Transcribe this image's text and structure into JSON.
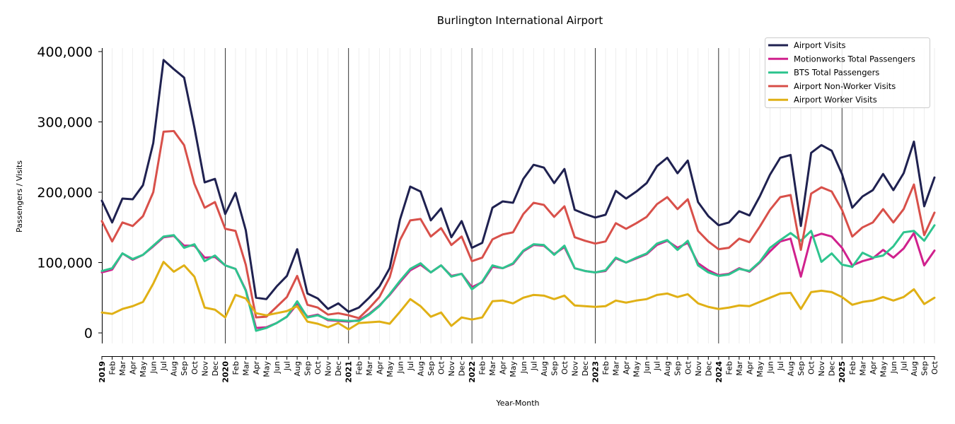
{
  "chart_data": {
    "type": "line",
    "title": "Burlington International Airport",
    "xlabel": "Year-Month",
    "ylabel": "Passengers / Visits",
    "ylim": [
      -15000,
      405000
    ],
    "yticks": [
      0,
      100000,
      200000,
      300000,
      400000
    ],
    "ytick_labels": [
      "0",
      "100,000",
      "200,000",
      "300,000",
      "400,000"
    ],
    "grid": "vertical minor lines per month, major lines at each January",
    "legend_position": "top-right",
    "x": [
      "2019",
      "Feb",
      "Mar",
      "Apr",
      "May",
      "Jun",
      "Jul",
      "Aug",
      "Sep",
      "Oct",
      "Nov",
      "Dec",
      "2020",
      "Feb",
      "Mar",
      "Apr",
      "May",
      "Jun",
      "Jul",
      "Aug",
      "Sep",
      "Oct",
      "Nov",
      "Dec",
      "2021",
      "Feb",
      "Mar",
      "Apr",
      "May",
      "Jun",
      "Jul",
      "Aug",
      "Sep",
      "Oct",
      "Nov",
      "Dec",
      "2022",
      "Feb",
      "Mar",
      "Apr",
      "May",
      "Jun",
      "Jul",
      "Aug",
      "Sep",
      "Oct",
      "Nov",
      "Dec",
      "2023",
      "Feb",
      "Mar",
      "Apr",
      "May",
      "Jun",
      "Jul",
      "Aug",
      "Sep",
      "Oct",
      "Nov",
      "Dec",
      "2024",
      "Feb",
      "Mar",
      "Apr",
      "May",
      "Jun",
      "Jul",
      "Aug",
      "Sep",
      "Oct",
      "Nov",
      "Dec",
      "2025",
      "Feb",
      "Mar",
      "Apr",
      "May",
      "Jun",
      "Jul",
      "Aug",
      "Sep",
      "Oct"
    ],
    "series": [
      {
        "name": "Airport Visits",
        "color": "#1f2150",
        "values": [
          188000,
          157000,
          191000,
          190000,
          210000,
          270000,
          388000,
          375000,
          363000,
          292000,
          214000,
          219000,
          169000,
          199000,
          146000,
          50000,
          48000,
          66000,
          81000,
          119000,
          56000,
          49000,
          34000,
          42000,
          30000,
          36000,
          50000,
          66000,
          92000,
          161000,
          208000,
          201000,
          160000,
          177000,
          136000,
          159000,
          121000,
          128000,
          178000,
          187000,
          185000,
          219000,
          239000,
          235000,
          213000,
          233000,
          175000,
          169000,
          164000,
          168000,
          202000,
          191000,
          201000,
          213000,
          237000,
          249000,
          227000,
          245000,
          186000,
          166000,
          153000,
          157000,
          173000,
          167000,
          194000,
          225000,
          249000,
          253000,
          152000,
          256000,
          267000,
          259000,
          226000,
          178000,
          194000,
          203000,
          226000,
          203000,
          227000,
          272000,
          180000,
          221000
        ]
      },
      {
        "name": "Motionworks Total Passengers",
        "color": "#d0218d",
        "values": [
          86000,
          90000,
          113000,
          104000,
          111000,
          123000,
          136000,
          138000,
          124000,
          124000,
          107000,
          108000,
          96000,
          91000,
          61000,
          7000,
          8000,
          14000,
          23000,
          41000,
          23000,
          26000,
          18000,
          17000,
          16000,
          18000,
          27000,
          39000,
          54000,
          72000,
          89000,
          97000,
          86000,
          96000,
          81000,
          84000,
          65000,
          72000,
          94000,
          92000,
          98000,
          116000,
          125000,
          124000,
          112000,
          122000,
          92000,
          88000,
          86000,
          88000,
          106000,
          100000,
          106000,
          112000,
          125000,
          131000,
          121000,
          128000,
          99000,
          89000,
          82000,
          84000,
          92000,
          87000,
          100000,
          116000,
          130000,
          134000,
          80000,
          136000,
          141000,
          137000,
          121000,
          96000,
          102000,
          106000,
          118000,
          107000,
          120000,
          142000,
          96000,
          117000
        ]
      },
      {
        "name": "BTS Total Passengers",
        "color": "#2ec48e",
        "values": [
          88000,
          92000,
          113000,
          105000,
          111000,
          124000,
          137000,
          139000,
          121000,
          126000,
          102000,
          110000,
          96000,
          91000,
          60000,
          3000,
          7000,
          14000,
          23000,
          45000,
          22000,
          25000,
          19000,
          18000,
          17000,
          17000,
          26000,
          38000,
          55000,
          74000,
          91000,
          99000,
          86000,
          96000,
          80000,
          84000,
          62000,
          73000,
          96000,
          92000,
          99000,
          117000,
          126000,
          125000,
          111000,
          124000,
          92000,
          88000,
          86000,
          89000,
          107000,
          100000,
          107000,
          113000,
          127000,
          132000,
          118000,
          131000,
          96000,
          86000,
          81000,
          83000,
          91000,
          88000,
          101000,
          121000,
          132000,
          142000,
          131000,
          145000,
          101000,
          113000,
          97000,
          94000,
          114000,
          107000,
          110000,
          123000,
          143000,
          145000,
          131000,
          153000
        ]
      },
      {
        "name": "Airport Non-Worker Visits",
        "color": "#d8504a",
        "values": [
          159000,
          130000,
          157000,
          152000,
          166000,
          200000,
          286000,
          287000,
          267000,
          212000,
          178000,
          186000,
          148000,
          145000,
          97000,
          22000,
          23000,
          37000,
          51000,
          81000,
          40000,
          36000,
          26000,
          28000,
          25000,
          21000,
          35000,
          51000,
          79000,
          132000,
          160000,
          162000,
          137000,
          149000,
          125000,
          137000,
          102000,
          107000,
          133000,
          140000,
          143000,
          169000,
          185000,
          182000,
          165000,
          180000,
          136000,
          131000,
          127000,
          130000,
          156000,
          148000,
          156000,
          165000,
          183000,
          193000,
          176000,
          190000,
          145000,
          130000,
          119000,
          121000,
          134000,
          129000,
          151000,
          175000,
          193000,
          196000,
          118000,
          198000,
          207000,
          201000,
          175000,
          137000,
          150000,
          157000,
          176000,
          157000,
          176000,
          211000,
          139000,
          171000
        ]
      },
      {
        "name": "Airport Worker Visits",
        "color": "#e0b015",
        "values": [
          29000,
          27000,
          34000,
          38000,
          44000,
          70000,
          101000,
          87000,
          96000,
          80000,
          36000,
          33000,
          22000,
          54000,
          49000,
          28000,
          25000,
          28000,
          31000,
          38000,
          16000,
          13000,
          8000,
          14000,
          5000,
          14000,
          15000,
          16000,
          13000,
          30000,
          48000,
          38000,
          23000,
          29000,
          10000,
          22000,
          19000,
          22000,
          45000,
          46000,
          42000,
          50000,
          54000,
          53000,
          48000,
          53000,
          39000,
          38000,
          37000,
          38000,
          46000,
          43000,
          46000,
          48000,
          54000,
          56000,
          51000,
          55000,
          42000,
          37000,
          34000,
          36000,
          39000,
          38000,
          44000,
          50000,
          56000,
          57000,
          34000,
          58000,
          60000,
          58000,
          51000,
          40000,
          44000,
          46000,
          51000,
          46000,
          51000,
          62000,
          41000,
          50000
        ]
      }
    ]
  }
}
